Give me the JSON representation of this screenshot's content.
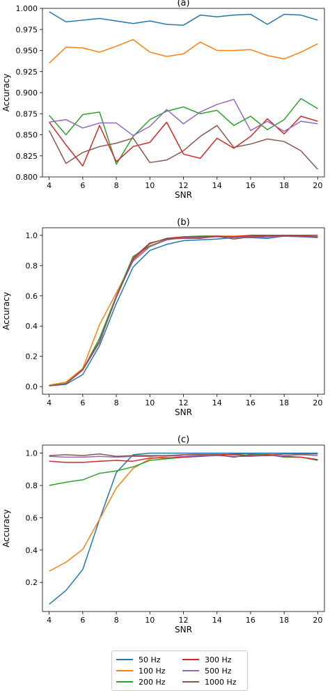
{
  "chart_data": [
    {
      "type": "line",
      "title": "(a)",
      "xlabel": "SNR",
      "ylabel": "Accuracy",
      "xlim": [
        3.6,
        20.4
      ],
      "ylim": [
        0.8,
        1.0
      ],
      "xticks": [
        4,
        6,
        8,
        10,
        12,
        14,
        16,
        18,
        20
      ],
      "yticks": [
        0.8,
        0.825,
        0.85,
        0.875,
        0.9,
        0.925,
        0.95,
        0.975,
        1.0
      ],
      "ytick_labels": [
        "0.800",
        "0.825",
        "0.850",
        "0.875",
        "0.900",
        "0.925",
        "0.950",
        "0.975",
        "1.000"
      ],
      "x": [
        4,
        5,
        6,
        7,
        8,
        9,
        10,
        11,
        12,
        13,
        14,
        15,
        16,
        17,
        18,
        19,
        20
      ],
      "series": [
        {
          "name": "50 Hz",
          "values": [
            0.996,
            0.984,
            0.986,
            0.988,
            0.985,
            0.982,
            0.985,
            0.981,
            0.98,
            0.992,
            0.99,
            0.992,
            0.993,
            0.981,
            0.993,
            0.992,
            0.986
          ]
        },
        {
          "name": "100 Hz",
          "values": [
            0.935,
            0.954,
            0.953,
            0.948,
            0.955,
            0.963,
            0.948,
            0.943,
            0.946,
            0.96,
            0.95,
            0.95,
            0.951,
            0.944,
            0.94,
            0.948,
            0.958
          ]
        },
        {
          "name": "200 Hz",
          "values": [
            0.873,
            0.85,
            0.874,
            0.877,
            0.815,
            0.848,
            0.868,
            0.878,
            0.883,
            0.875,
            0.879,
            0.861,
            0.872,
            0.856,
            0.868,
            0.893,
            0.881
          ]
        },
        {
          "name": "300 Hz",
          "values": [
            0.865,
            0.838,
            0.813,
            0.861,
            0.818,
            0.836,
            0.841,
            0.865,
            0.827,
            0.822,
            0.846,
            0.834,
            0.848,
            0.869,
            0.851,
            0.872,
            0.866
          ]
        },
        {
          "name": "500 Hz",
          "values": [
            0.865,
            0.868,
            0.858,
            0.864,
            0.864,
            0.849,
            0.86,
            0.88,
            0.863,
            0.877,
            0.886,
            0.892,
            0.855,
            0.866,
            0.854,
            0.866,
            0.863
          ]
        },
        {
          "name": "1000 Hz",
          "values": [
            0.855,
            0.816,
            0.829,
            0.836,
            0.84,
            0.846,
            0.817,
            0.82,
            0.831,
            0.848,
            0.861,
            0.835,
            0.839,
            0.845,
            0.842,
            0.831,
            0.809
          ]
        }
      ]
    },
    {
      "type": "line",
      "title": "(b)",
      "xlabel": "SNR",
      "ylabel": "Accuracy",
      "xlim": [
        3.6,
        20.4
      ],
      "ylim": [
        -0.05,
        1.05
      ],
      "xticks": [
        4,
        6,
        8,
        10,
        12,
        14,
        16,
        18,
        20
      ],
      "yticks": [
        0.0,
        0.2,
        0.4,
        0.6,
        0.8,
        1.0
      ],
      "ytick_labels": [
        "0.0",
        "0.2",
        "0.4",
        "0.6",
        "0.8",
        "1.0"
      ],
      "x": [
        4,
        5,
        6,
        7,
        8,
        9,
        10,
        11,
        12,
        13,
        14,
        15,
        16,
        17,
        18,
        19,
        20
      ],
      "series": [
        {
          "name": "50 Hz",
          "values": [
            0.005,
            0.015,
            0.08,
            0.27,
            0.55,
            0.79,
            0.9,
            0.94,
            0.965,
            0.97,
            0.975,
            0.985,
            0.985,
            0.98,
            0.995,
            0.99,
            0.985
          ]
        },
        {
          "name": "100 Hz",
          "values": [
            0.01,
            0.03,
            0.12,
            0.41,
            0.62,
            0.83,
            0.93,
            0.975,
            0.99,
            0.995,
            0.995,
            0.995,
            1.0,
            1.0,
            1.0,
            1.0,
            1.0
          ]
        },
        {
          "name": "200 Hz",
          "values": [
            0.005,
            0.02,
            0.11,
            0.32,
            0.6,
            0.86,
            0.93,
            0.97,
            0.99,
            0.995,
            0.995,
            0.99,
            0.995,
            0.995,
            0.995,
            0.995,
            0.99
          ]
        },
        {
          "name": "300 Hz",
          "values": [
            0.005,
            0.02,
            0.115,
            0.3,
            0.59,
            0.84,
            0.945,
            0.98,
            0.99,
            0.99,
            0.995,
            0.99,
            1.0,
            1.0,
            1.0,
            1.0,
            1.0
          ]
        },
        {
          "name": "500 Hz",
          "values": [
            0.005,
            0.02,
            0.11,
            0.29,
            0.6,
            0.83,
            0.925,
            0.97,
            0.985,
            0.985,
            0.99,
            0.985,
            0.99,
            0.985,
            0.995,
            0.99,
            0.99
          ]
        },
        {
          "name": "1000 Hz",
          "values": [
            0.005,
            0.02,
            0.11,
            0.3,
            0.59,
            0.85,
            0.95,
            0.975,
            0.98,
            0.98,
            0.995,
            0.975,
            0.99,
            0.995,
            0.995,
            0.995,
            0.99
          ]
        }
      ]
    },
    {
      "type": "line",
      "title": "(c)",
      "xlabel": "SNR",
      "ylabel": "Accuracy",
      "xlim": [
        3.6,
        20.4
      ],
      "ylim": [
        0.02,
        1.05
      ],
      "xticks": [
        4,
        6,
        8,
        10,
        12,
        14,
        16,
        18,
        20
      ],
      "yticks": [
        0.2,
        0.4,
        0.6,
        0.8,
        1.0
      ],
      "ytick_labels": [
        "0.2",
        "0.4",
        "0.6",
        "0.8",
        "1.0"
      ],
      "x": [
        4,
        5,
        6,
        7,
        8,
        9,
        10,
        11,
        12,
        13,
        14,
        15,
        16,
        17,
        18,
        19,
        20
      ],
      "series": [
        {
          "name": "50 Hz",
          "values": [
            0.065,
            0.15,
            0.28,
            0.59,
            0.88,
            0.99,
            1.0,
            1.0,
            1.0,
            1.0,
            1.0,
            1.0,
            1.0,
            1.0,
            1.0,
            1.0,
            1.0
          ]
        },
        {
          "name": "100 Hz",
          "values": [
            0.27,
            0.325,
            0.405,
            0.59,
            0.785,
            0.905,
            0.965,
            0.98,
            0.99,
            0.995,
            0.995,
            0.995,
            0.995,
            0.995,
            0.995,
            0.995,
            0.995
          ]
        },
        {
          "name": "200 Hz",
          "values": [
            0.8,
            0.82,
            0.835,
            0.875,
            0.89,
            0.915,
            0.955,
            0.965,
            0.975,
            0.98,
            0.985,
            0.995,
            0.995,
            0.99,
            0.975,
            0.975,
            0.955
          ]
        },
        {
          "name": "300 Hz",
          "values": [
            0.95,
            0.943,
            0.943,
            0.95,
            0.955,
            0.95,
            0.97,
            0.97,
            0.975,
            0.98,
            0.99,
            0.99,
            0.985,
            0.99,
            0.98,
            0.975,
            0.96
          ]
        },
        {
          "name": "500 Hz",
          "values": [
            0.98,
            0.975,
            0.975,
            0.98,
            0.975,
            0.98,
            0.98,
            0.985,
            0.98,
            0.985,
            0.985,
            0.98,
            0.98,
            0.985,
            0.985,
            0.99,
            0.985
          ]
        },
        {
          "name": "1000 Hz",
          "values": [
            0.985,
            0.99,
            0.985,
            0.995,
            0.98,
            0.985,
            0.985,
            0.985,
            0.99,
            0.99,
            0.99,
            0.975,
            0.99,
            0.985,
            0.995,
            0.995,
            0.995
          ]
        }
      ]
    }
  ],
  "colors": [
    "#1f77b4",
    "#ff7f0e",
    "#2ca02c",
    "#d62728",
    "#9467bd",
    "#8c564b"
  ],
  "legend": {
    "placement": "bottom-center",
    "items": [
      {
        "label": "50 Hz",
        "color": "#1f77b4"
      },
      {
        "label": "300 Hz",
        "color": "#d62728"
      },
      {
        "label": "100 Hz",
        "color": "#ff7f0e"
      },
      {
        "label": "500 Hz",
        "color": "#9467bd"
      },
      {
        "label": "200 Hz",
        "color": "#2ca02c"
      },
      {
        "label": "1000 Hz",
        "color": "#8c564b"
      }
    ]
  }
}
